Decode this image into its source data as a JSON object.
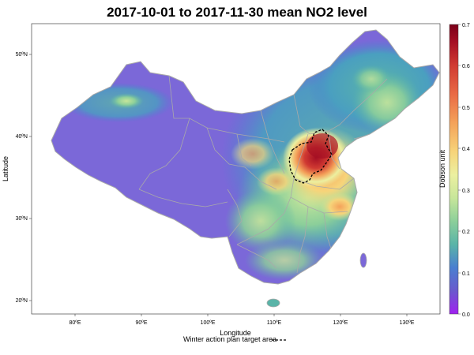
{
  "map": {
    "title": "2017-10-01 to 2017-11-30 mean NO2 level",
    "xlabel": "Longitude",
    "ylabel": "Latitude",
    "x_ticks": [
      "80ºE",
      "90ºE",
      "100ºE",
      "110ºE",
      "120ºE",
      "130ºE"
    ],
    "y_ticks": [
      "50ºN",
      "40ºN",
      "30ºN",
      "20ºN"
    ],
    "lon_range": [
      73.5,
      135
    ],
    "lat_range": [
      18,
      53.5
    ],
    "colorbar": {
      "label": "Dobson unit",
      "ticks": [
        "0.7",
        "0.6",
        "0.5",
        "0.4",
        "0.3",
        "0.2",
        "0.1",
        "0.0"
      ],
      "range": [
        0,
        0.7
      ],
      "colors": [
        "#a020f0",
        "#6a5acd",
        "#4a7fd0",
        "#5ab4a8",
        "#8ccf9a",
        "#c7e69a",
        "#ecf0a0",
        "#f7d47a",
        "#f4a25a",
        "#e96a45",
        "#d03a32",
        "#a50f24",
        "#7a0019"
      ]
    },
    "legend": {
      "label": "Winter action plan target area",
      "line_style": "dashed"
    },
    "colors": {
      "background": "#7b68d8",
      "border": "#a9a9a9"
    }
  }
}
